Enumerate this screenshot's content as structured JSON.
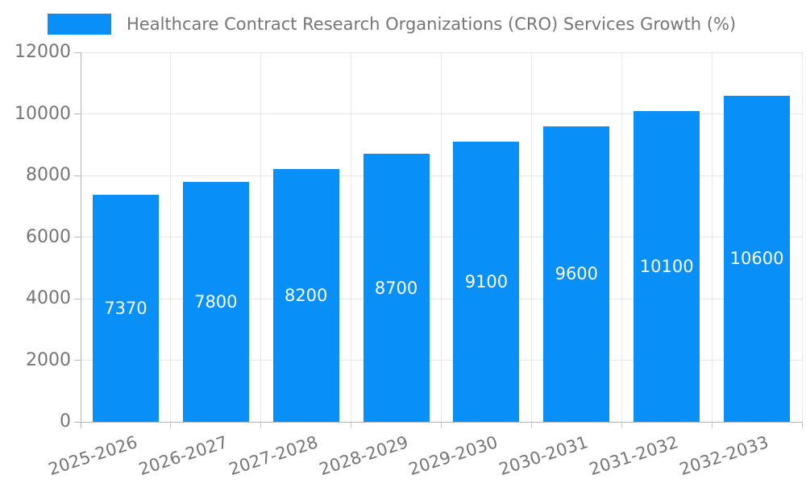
{
  "chart_data": {
    "type": "bar",
    "title": "Healthcare Contract Research Organizations (CRO) Services Growth (%)",
    "legend": [
      {
        "label": "Healthcare Contract Research Organizations (CRO) Services Growth (%)"
      }
    ],
    "legend_position": "top-left",
    "categories": [
      "2025-2026",
      "2026-2027",
      "2027-2028",
      "2028-2029",
      "2029-2030",
      "2030-2031",
      "2031-2032",
      "2032-2033"
    ],
    "values": [
      7370,
      7800,
      8200,
      8700,
      9100,
      9600,
      10100,
      10600
    ],
    "value_labels": [
      "7370",
      "7800",
      "8200",
      "8700",
      "9100",
      "9600",
      "10100",
      "10600"
    ],
    "xlabel": "",
    "ylabel": "",
    "ylim": [
      0,
      12000
    ],
    "ytick_interval": 2000,
    "yticks": [
      "0",
      "2000",
      "4000",
      "6000",
      "8000",
      "10000",
      "12000"
    ],
    "grid": "on",
    "x_label_rotation_deg": -18,
    "colors": {
      "bar": "#0990f8",
      "bar_value_text": "#ffffff",
      "axis_text": "#757575",
      "axis_line": "#b3b3b3",
      "gridline": "#e6e6e6",
      "background": "#ffffff"
    }
  }
}
